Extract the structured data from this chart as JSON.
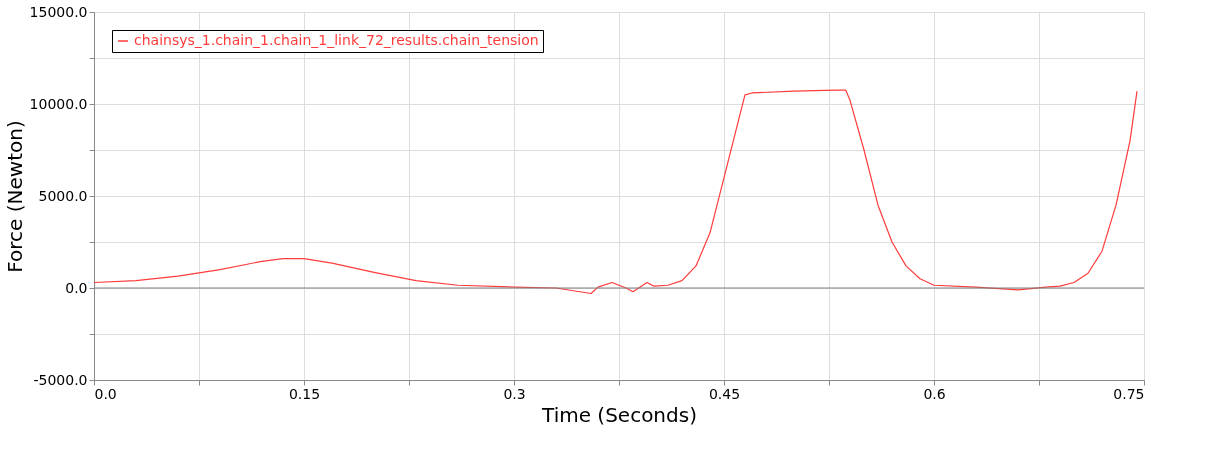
{
  "chart_data": {
    "type": "line",
    "xlabel": "Time (Seconds)",
    "ylabel": "Force (Newton)",
    "xlim": [
      0,
      0.75
    ],
    "ylim": [
      -5000,
      15000
    ],
    "xticks": [
      {
        "value": 0,
        "label": "0.0"
      },
      {
        "value": 0.075,
        "label": null
      },
      {
        "value": 0.15,
        "label": "0.15"
      },
      {
        "value": 0.225,
        "label": null
      },
      {
        "value": 0.3,
        "label": "0.3"
      },
      {
        "value": 0.375,
        "label": null
      },
      {
        "value": 0.45,
        "label": "0.45"
      },
      {
        "value": 0.525,
        "label": null
      },
      {
        "value": 0.6,
        "label": "0.6"
      },
      {
        "value": 0.675,
        "label": null
      },
      {
        "value": 0.75,
        "label": "0.75"
      }
    ],
    "yticks": [
      {
        "value": -5000,
        "label": "-5000.0"
      },
      {
        "value": -2500,
        "label": null
      },
      {
        "value": 0,
        "label": "0.0"
      },
      {
        "value": 2500,
        "label": null
      },
      {
        "value": 5000,
        "label": "5000.0"
      },
      {
        "value": 7500,
        "label": null
      },
      {
        "value": 10000,
        "label": "10000.0"
      },
      {
        "value": 12500,
        "label": null
      },
      {
        "value": 15000,
        "label": "15000.0"
      }
    ],
    "grid": true,
    "legend": "top left",
    "line_style": "solid",
    "ref_lines": [
      {
        "axis": "y",
        "value": 0,
        "color": "#808080"
      }
    ],
    "series": [
      {
        "name": "chainsys_1.chain_1.chain_1_link_72_results.chain_tension",
        "color": "#ff3b3b",
        "x": [
          0,
          0.03,
          0.06,
          0.09,
          0.12,
          0.135,
          0.15,
          0.17,
          0.2,
          0.23,
          0.26,
          0.3,
          0.33,
          0.355,
          0.36,
          0.37,
          0.38,
          0.385,
          0.395,
          0.4,
          0.41,
          0.42,
          0.43,
          0.44,
          0.45,
          0.46,
          0.465,
          0.47,
          0.5,
          0.53,
          0.537,
          0.54,
          0.55,
          0.56,
          0.57,
          0.58,
          0.59,
          0.6,
          0.63,
          0.66,
          0.68,
          0.69,
          0.7,
          0.71,
          0.72,
          0.73,
          0.74,
          0.745
        ],
        "values": [
          300,
          400,
          650,
          1000,
          1450,
          1600,
          1600,
          1350,
          850,
          400,
          150,
          50,
          0,
          -300,
          50,
          300,
          0,
          -200,
          300,
          100,
          150,
          400,
          1200,
          3000,
          6000,
          9000,
          10500,
          10600,
          10700,
          10750,
          10750,
          10200,
          7500,
          4500,
          2500,
          1200,
          500,
          150,
          50,
          -100,
          50,
          100,
          300,
          800,
          2000,
          4500,
          8000,
          10700
        ]
      }
    ]
  }
}
